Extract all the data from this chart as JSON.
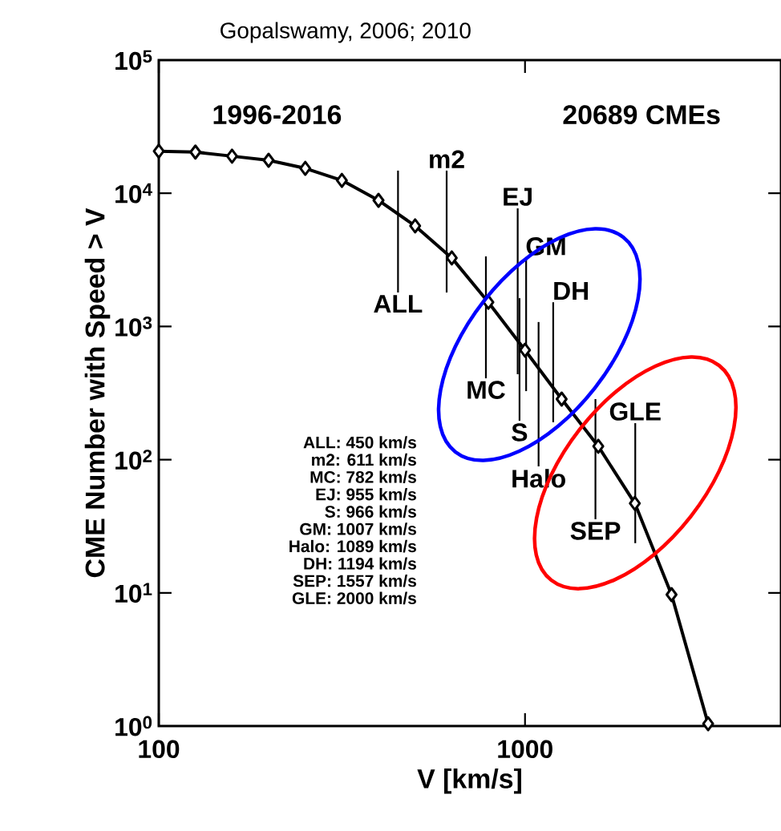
{
  "chart_data": {
    "type": "line",
    "title": "Gopalswamy, 2006; 2010",
    "xlabel": "V [km/s]",
    "ylabel": "CME Number with Speed > V",
    "log": "xy",
    "marker": "diamond",
    "grid": false,
    "xlim": [
      100,
      5000
    ],
    "ylim": [
      1,
      100000
    ],
    "xticks": [
      100,
      1000
    ],
    "yticks": [
      {
        "value": 1,
        "label": "10$^{0}$"
      },
      {
        "value": 10,
        "label": "10$^{1}$"
      },
      {
        "value": 100,
        "label": "10$^{2}$"
      },
      {
        "value": 1000,
        "label": "10$^{3}$"
      },
      {
        "value": 10000,
        "label": "10$^{4}$"
      },
      {
        "value": 100000,
        "label": "10$^{5}$"
      }
    ],
    "series": [
      {
        "color": "#000000",
        "x": [
          100,
          125.9,
          158.5,
          199.5,
          251.2,
          316.2,
          398.1,
          501.2,
          631,
          794.3,
          1000,
          1259,
          1585,
          1995,
          2512,
          3162
        ],
        "values": [
          20700,
          20400,
          19000,
          17700,
          15400,
          12500,
          8850,
          5690,
          3270,
          1520,
          664,
          285,
          126,
          47,
          9.7,
          1.04
        ]
      },
      {
        "color": "#000000",
        "marker": "none",
        "x": [
          450,
          450
        ],
        "values": [
          14800,
          1800
        ]
      },
      {
        "color": "#000000",
        "marker": "none",
        "x": [
          611,
          611
        ],
        "values": [
          14800,
          1800
        ]
      },
      {
        "color": "#000000",
        "marker": "none",
        "x": [
          782,
          782
        ],
        "values": [
          3360,
          408
        ]
      },
      {
        "color": "#000000",
        "marker": "none",
        "x": [
          955,
          955
        ],
        "values": [
          7710,
          438
        ]
      },
      {
        "color": "#000000",
        "marker": "none",
        "x": [
          966,
          966
        ],
        "values": [
          1630,
          196
        ]
      },
      {
        "color": "#000000",
        "marker": "none",
        "x": [
          1007,
          1007
        ],
        "values": [
          3270,
          327
        ]
      },
      {
        "color": "#000000",
        "marker": "none",
        "x": [
          1089,
          1089
        ],
        "values": [
          1080,
          89
        ]
      },
      {
        "color": "#000000",
        "marker": "none",
        "x": [
          1194,
          1194
        ],
        "values": [
          1520,
          191
        ]
      },
      {
        "color": "#000000",
        "marker": "none",
        "x": [
          1557,
          1557
        ],
        "values": [
          285,
          35.7
        ]
      },
      {
        "color": "#000000",
        "marker": "none",
        "x": [
          2000,
          2000
        ],
        "values": [
          188,
          23.6
        ]
      }
    ],
    "annotations": [
      "1996-2016",
      "20689 CMEs",
      "ALL: 450 km/s",
      "m2: 611 km/s",
      "MC: 782 km/s",
      "EJ: 955 km/s",
      "S: 966 km/s",
      "GM: 1007 km/s",
      "Halo: 1089 km/s",
      "DH: 1194 km/s",
      "SEP: 1557 km/s",
      "GLE: 2000 km/s",
      {
        "text": "ALL",
        "x": 450,
        "y": 1800
      },
      {
        "text": "m2",
        "x": 611,
        "y": 14800
      },
      {
        "text": "MC",
        "x": 782,
        "y": 408
      },
      {
        "text": "EJ",
        "x": 955,
        "y": 7710
      },
      {
        "text": "S",
        "x": 966,
        "y": 196
      },
      {
        "text": "GM",
        "x": 1007,
        "y": 3270
      },
      {
        "text": "Halo",
        "x": 1089,
        "y": 89
      },
      {
        "text": "DH",
        "x": 1194,
        "y": 1520
      },
      {
        "text": "SEP",
        "x": 1557,
        "y": 35.7
      },
      {
        "text": "GLE",
        "x": 2000,
        "y": 188
      }
    ]
  }
}
